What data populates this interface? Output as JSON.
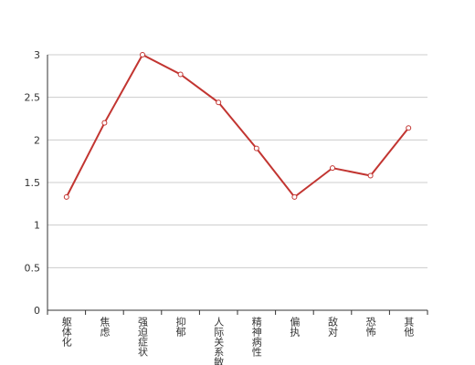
{
  "chart_data": {
    "type": "line",
    "categories": [
      "躯体化",
      "焦虑",
      "强迫症状",
      "抑郁",
      "人际关系敏感",
      "精神病性",
      "偏执",
      "敌对",
      "恐怖",
      "其他"
    ],
    "series": [
      {
        "color": "#c23531",
        "values": [
          1.33,
          2.2,
          3.0,
          2.77,
          2.44,
          1.9,
          1.33,
          1.67,
          1.58,
          2.14
        ]
      }
    ],
    "ylim": [
      0,
      3
    ],
    "yticks": [
      0,
      0.5,
      1,
      1.5,
      2,
      2.5,
      3
    ],
    "grid": true
  }
}
